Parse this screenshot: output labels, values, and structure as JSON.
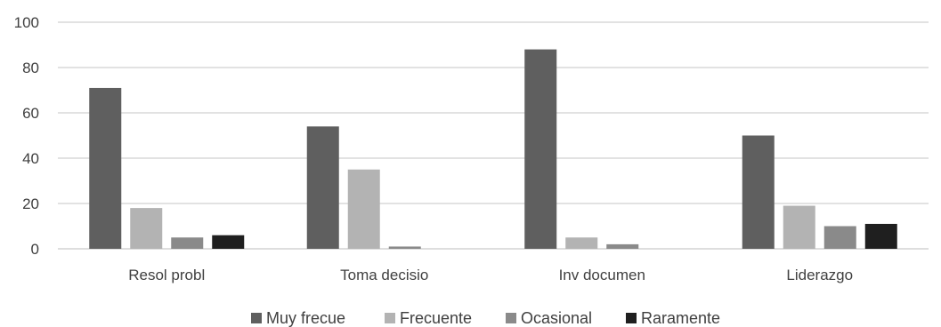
{
  "chart_data": {
    "type": "bar",
    "categories": [
      "Resol probl",
      "Toma decisio",
      "Inv documen",
      "Liderazgo"
    ],
    "series": [
      {
        "name": "Muy frecue",
        "color": "#5f5f5f",
        "values": [
          71,
          54,
          88,
          50
        ]
      },
      {
        "name": "Frecuente",
        "color": "#b3b3b3",
        "values": [
          18,
          35,
          5,
          19
        ]
      },
      {
        "name": "Ocasional",
        "color": "#8a8a8a",
        "values": [
          5,
          1,
          2,
          10
        ]
      },
      {
        "name": "Raramente",
        "color": "#1f1f1f",
        "values": [
          6,
          0,
          0,
          11
        ]
      }
    ],
    "ylim": [
      0,
      100
    ],
    "yticks": [
      "0",
      "20",
      "40",
      "60",
      "80",
      "100"
    ],
    "grid": true,
    "legend_position": "bottom"
  }
}
